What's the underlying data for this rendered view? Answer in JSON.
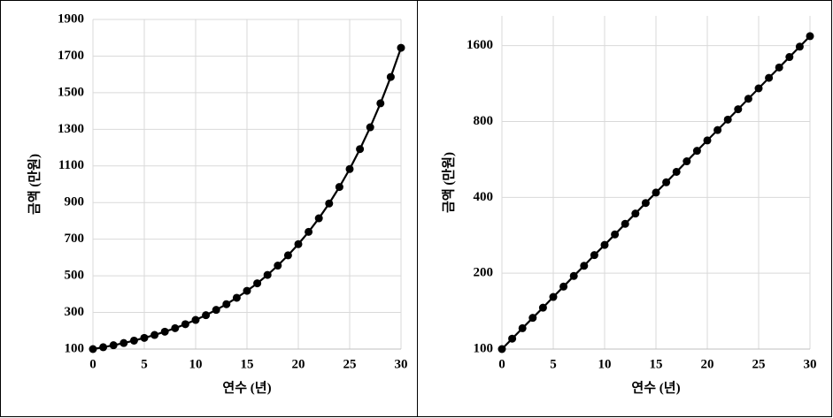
{
  "chart_data": [
    {
      "type": "line",
      "xlabel": "연수 (년)",
      "ylabel": "금액 (만원)",
      "x": [
        0,
        1,
        2,
        3,
        4,
        5,
        6,
        7,
        8,
        9,
        10,
        11,
        12,
        13,
        14,
        15,
        16,
        17,
        18,
        19,
        20,
        21,
        22,
        23,
        24,
        25,
        26,
        27,
        28,
        29,
        30
      ],
      "series": [
        {
          "name": null,
          "color": "#000000",
          "values": [
            100,
            110,
            121,
            133,
            146,
            161,
            177,
            195,
            214,
            236,
            259,
            285,
            314,
            345,
            380,
            418,
            459,
            505,
            556,
            612,
            673,
            740,
            814,
            895,
            985,
            1083,
            1192,
            1311,
            1442,
            1586,
            1745
          ]
        }
      ],
      "xlim": [
        0,
        30
      ],
      "xticks": [
        0,
        5,
        10,
        15,
        20,
        25,
        30
      ],
      "ylim": [
        100,
        1900
      ],
      "yticks": [
        100,
        300,
        500,
        700,
        900,
        1100,
        1300,
        1500,
        1700,
        1900
      ],
      "grid": true,
      "log_scale": false
    },
    {
      "type": "line",
      "xlabel": "연수 (년)",
      "ylabel": "금액 (만원)",
      "x": [
        0,
        1,
        2,
        3,
        4,
        5,
        6,
        7,
        8,
        9,
        10,
        11,
        12,
        13,
        14,
        15,
        16,
        17,
        18,
        19,
        20,
        21,
        22,
        23,
        24,
        25,
        26,
        27,
        28,
        29,
        30
      ],
      "series": [
        {
          "name": null,
          "color": "#000000",
          "values": [
            100,
            110,
            121,
            133,
            146,
            161,
            177,
            195,
            214,
            236,
            259,
            285,
            314,
            345,
            380,
            418,
            459,
            505,
            556,
            612,
            673,
            740,
            814,
            895,
            985,
            1083,
            1192,
            1311,
            1442,
            1586,
            1745
          ]
        }
      ],
      "xlim": [
        0,
        30
      ],
      "xticks": [
        0,
        5,
        10,
        15,
        20,
        25,
        30
      ],
      "ylim": [
        100,
        2100
      ],
      "yticks": [
        100,
        200,
        400,
        800,
        1600
      ],
      "grid": true,
      "log_scale": true
    }
  ]
}
